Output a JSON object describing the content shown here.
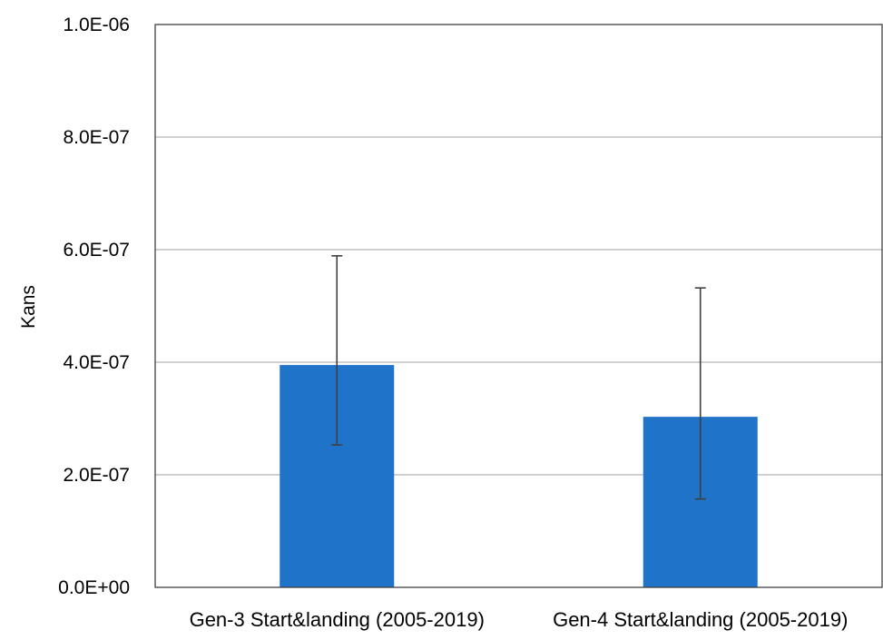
{
  "chart_data": {
    "type": "bar",
    "title": "",
    "xlabel": "",
    "ylabel": "Kans",
    "categories": [
      "Gen-3 Start&landing (2005-2019)",
      "Gen-4 Start&landing (2005-2019)"
    ],
    "series": [
      {
        "values": [
          3.95e-07,
          3.03e-07
        ],
        "error_low": [
          2.53e-07,
          1.57e-07
        ],
        "error_high": [
          5.89e-07,
          5.32e-07
        ],
        "color": "#1f73c8"
      }
    ],
    "ylim": [
      0,
      1e-06
    ],
    "yticks": [
      0,
      2e-07,
      4e-07,
      6e-07,
      8e-07,
      1e-06
    ],
    "ytick_labels": [
      "0.0E+00",
      "2.0E-07",
      "4.0E-07",
      "6.0E-07",
      "8.0E-07",
      "1.0E-06"
    ],
    "grid": true,
    "gridline_color": "#b3b3b3",
    "errorbar_color": "#404040",
    "legend": "none"
  }
}
